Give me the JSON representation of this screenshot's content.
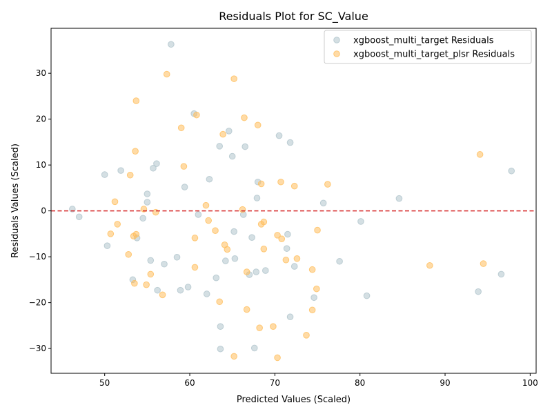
{
  "chart_data": {
    "type": "scatter",
    "title": "Residuals Plot for SC_Value",
    "xlabel": "Predicted Values (Scaled)",
    "ylabel": "Residuals Values (Scaled)",
    "xlim": [
      43.7,
      100.7
    ],
    "ylim": [
      -35.4,
      39.8
    ],
    "xticks": [
      50,
      60,
      70,
      80,
      90,
      100
    ],
    "yticks": [
      -30,
      -20,
      -10,
      0,
      10,
      20,
      30
    ],
    "grid": false,
    "legend_position": "top-right",
    "reference_line": {
      "y": 0,
      "color": "#d62728",
      "style": "dashed"
    },
    "series": [
      {
        "name": "xgboost_multi_target Residuals",
        "color": "#b0c4cc",
        "points": [
          [
            57.8,
            36.3
          ],
          [
            60.5,
            21.2
          ],
          [
            64.6,
            17.4
          ],
          [
            70.5,
            16.4
          ],
          [
            71.8,
            14.9
          ],
          [
            63.5,
            14.1
          ],
          [
            66.5,
            14.0
          ],
          [
            65.0,
            11.9
          ],
          [
            56.1,
            10.3
          ],
          [
            55.7,
            9.3
          ],
          [
            51.9,
            8.8
          ],
          [
            50.0,
            7.9
          ],
          [
            62.3,
            6.9
          ],
          [
            68.0,
            6.3
          ],
          [
            59.4,
            5.2
          ],
          [
            55.0,
            3.7
          ],
          [
            67.9,
            2.8
          ],
          [
            84.6,
            2.7
          ],
          [
            55.0,
            1.9
          ],
          [
            75.7,
            1.7
          ],
          [
            46.2,
            0.4
          ],
          [
            47.0,
            -1.3
          ],
          [
            61.0,
            -0.8
          ],
          [
            66.3,
            -0.8
          ],
          [
            54.5,
            -1.6
          ],
          [
            80.1,
            -2.3
          ],
          [
            71.5,
            -5.1
          ],
          [
            65.2,
            -4.5
          ],
          [
            67.3,
            -5.8
          ],
          [
            53.8,
            -5.9
          ],
          [
            50.3,
            -7.6
          ],
          [
            71.4,
            -8.2
          ],
          [
            58.5,
            -10.1
          ],
          [
            65.3,
            -10.4
          ],
          [
            55.4,
            -10.8
          ],
          [
            64.2,
            -10.9
          ],
          [
            77.6,
            -11.0
          ],
          [
            57.0,
            -11.6
          ],
          [
            72.3,
            -12.1
          ],
          [
            67.8,
            -13.3
          ],
          [
            68.9,
            -13.0
          ],
          [
            67.0,
            -13.9
          ],
          [
            96.6,
            -13.8
          ],
          [
            63.1,
            -14.6
          ],
          [
            53.3,
            -15.0
          ],
          [
            59.8,
            -16.6
          ],
          [
            56.2,
            -17.3
          ],
          [
            58.9,
            -17.3
          ],
          [
            93.9,
            -17.6
          ],
          [
            62.0,
            -18.1
          ],
          [
            80.8,
            -18.5
          ],
          [
            74.6,
            -18.9
          ],
          [
            71.8,
            -23.1
          ],
          [
            63.6,
            -25.2
          ],
          [
            67.6,
            -29.9
          ],
          [
            63.6,
            -30.1
          ],
          [
            97.8,
            8.7
          ]
        ]
      },
      {
        "name": "xgboost_multi_target_plsr Residuals",
        "color": "#ffbe5c",
        "points": [
          [
            57.3,
            29.8
          ],
          [
            65.2,
            28.8
          ],
          [
            53.7,
            24.0
          ],
          [
            60.8,
            20.9
          ],
          [
            66.4,
            20.3
          ],
          [
            68.0,
            18.7
          ],
          [
            59.0,
            18.1
          ],
          [
            63.9,
            16.7
          ],
          [
            53.6,
            13.0
          ],
          [
            94.1,
            12.3
          ],
          [
            59.3,
            9.7
          ],
          [
            53.0,
            7.8
          ],
          [
            70.7,
            6.3
          ],
          [
            68.4,
            5.9
          ],
          [
            76.2,
            5.8
          ],
          [
            72.3,
            5.4
          ],
          [
            51.2,
            2.0
          ],
          [
            61.9,
            1.2
          ],
          [
            54.6,
            0.4
          ],
          [
            66.2,
            0.3
          ],
          [
            56.0,
            -0.3
          ],
          [
            62.2,
            -2.1
          ],
          [
            68.7,
            -2.4
          ],
          [
            68.4,
            -2.9
          ],
          [
            51.5,
            -2.9
          ],
          [
            63.0,
            -4.3
          ],
          [
            75.0,
            -4.2
          ],
          [
            50.7,
            -5.0
          ],
          [
            53.7,
            -5.1
          ],
          [
            53.4,
            -5.5
          ],
          [
            70.3,
            -5.3
          ],
          [
            60.6,
            -5.9
          ],
          [
            70.8,
            -6.1
          ],
          [
            64.1,
            -7.4
          ],
          [
            64.4,
            -8.4
          ],
          [
            68.7,
            -8.3
          ],
          [
            52.8,
            -9.5
          ],
          [
            72.6,
            -10.4
          ],
          [
            71.3,
            -10.7
          ],
          [
            94.5,
            -11.5
          ],
          [
            88.2,
            -11.9
          ],
          [
            60.6,
            -12.3
          ],
          [
            74.4,
            -12.8
          ],
          [
            66.7,
            -13.3
          ],
          [
            55.4,
            -13.8
          ],
          [
            53.5,
            -15.8
          ],
          [
            54.9,
            -16.1
          ],
          [
            74.9,
            -17.0
          ],
          [
            56.8,
            -18.3
          ],
          [
            63.5,
            -19.8
          ],
          [
            66.7,
            -21.5
          ],
          [
            74.4,
            -21.6
          ],
          [
            69.8,
            -25.2
          ],
          [
            68.2,
            -25.5
          ],
          [
            73.7,
            -27.1
          ],
          [
            65.2,
            -31.7
          ],
          [
            70.3,
            -32.0
          ]
        ]
      }
    ]
  }
}
